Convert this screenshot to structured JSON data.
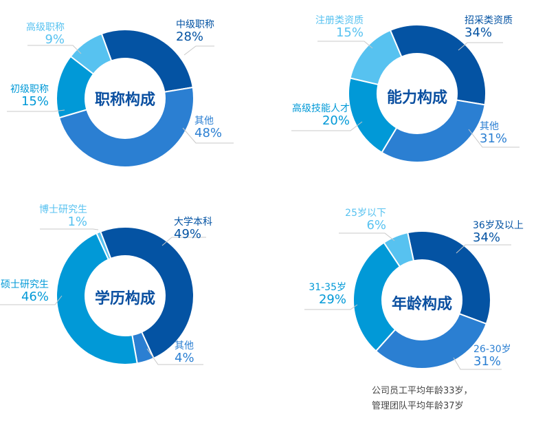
{
  "colors": {
    "dark": "#0453a3",
    "medium": "#2b7fd2",
    "cyan": "#0199d7",
    "light": "#57c2f0"
  },
  "chart_data": [
    {
      "type": "pie",
      "title": "职称构成",
      "series": [
        {
          "name": "中级职称",
          "value": 28,
          "label": "28%",
          "color": "#0453a3"
        },
        {
          "name": "其他",
          "value": 48,
          "label": "48%",
          "color": "#2b7fd2"
        },
        {
          "name": "初级职称",
          "value": 15,
          "label": "15%",
          "color": "#0199d7"
        },
        {
          "name": "高级职称",
          "value": 9,
          "label": "9%",
          "color": "#57c2f0"
        }
      ]
    },
    {
      "type": "pie",
      "title": "能力构成",
      "series": [
        {
          "name": "招采类资质",
          "value": 34,
          "label": "34%",
          "color": "#0453a3"
        },
        {
          "name": "其他",
          "value": 31,
          "label": "31%",
          "color": "#2b7fd2"
        },
        {
          "name": "高级技能人才",
          "value": 20,
          "label": "20%",
          "color": "#0199d7"
        },
        {
          "name": "注册类资质",
          "value": 15,
          "label": "15%",
          "color": "#57c2f0"
        }
      ]
    },
    {
      "type": "pie",
      "title": "学历构成",
      "series": [
        {
          "name": "大学本科",
          "value": 49,
          "label": "49%",
          "color": "#0453a3"
        },
        {
          "name": "其他",
          "value": 4,
          "label": "4%",
          "color": "#2b7fd2"
        },
        {
          "name": "硕士研究生",
          "value": 46,
          "label": "46%",
          "color": "#0199d7"
        },
        {
          "name": "博士研究生",
          "value": 1,
          "label": "1%",
          "color": "#57c2f0"
        }
      ]
    },
    {
      "type": "pie",
      "title": "年龄构成",
      "series": [
        {
          "name": "36岁及以上",
          "value": 34,
          "label": "34%",
          "color": "#0453a3"
        },
        {
          "name": "26-30岁",
          "value": 31,
          "label": "31%",
          "color": "#2b7fd2"
        },
        {
          "name": "31-35岁",
          "value": 29,
          "label": "29%",
          "color": "#0199d7"
        },
        {
          "name": "25岁以下",
          "value": 6,
          "label": "6%",
          "color": "#57c2f0"
        }
      ]
    }
  ],
  "note": [
    "公司员工平均年龄33岁，",
    "管理团队平均年龄37岁"
  ]
}
